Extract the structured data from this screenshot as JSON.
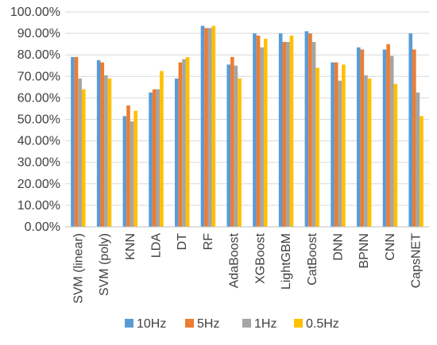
{
  "chart_data": {
    "type": "bar",
    "categories": [
      "SVM (linear)",
      "SVM (poly)",
      "KNN",
      "LDA",
      "DT",
      "RF",
      "AdaBoost",
      "XGBoost",
      "LightGBM",
      "CatBoost",
      "DNN",
      "BPNN",
      "CNN",
      "CapsNET"
    ],
    "series": [
      {
        "name": "10Hz",
        "color": "#5B9BD5",
        "values": [
          79.0,
          77.5,
          51.5,
          62.5,
          69.0,
          93.5,
          75.5,
          90.0,
          90.0,
          91.0,
          76.5,
          83.5,
          82.5,
          90.0
        ]
      },
      {
        "name": "5Hz",
        "color": "#ED7D31",
        "values": [
          79.0,
          76.5,
          56.5,
          64.0,
          76.5,
          92.5,
          79.0,
          89.0,
          86.0,
          90.0,
          76.5,
          82.5,
          85.0,
          82.5
        ]
      },
      {
        "name": "1Hz",
        "color": "#A5A5A5",
        "values": [
          69.0,
          70.5,
          49.0,
          64.0,
          78.0,
          92.5,
          75.0,
          83.5,
          86.0,
          86.0,
          68.0,
          70.5,
          79.5,
          62.5
        ]
      },
      {
        "name": "0.5Hz",
        "color": "#FFC000",
        "values": [
          64.0,
          69.0,
          54.0,
          72.5,
          79.0,
          93.5,
          69.0,
          87.5,
          89.0,
          74.0,
          75.5,
          69.0,
          66.5,
          51.5
        ]
      }
    ],
    "yticks": [
      "0.00%",
      "10.00%",
      "20.00%",
      "30.00%",
      "40.00%",
      "50.00%",
      "60.00%",
      "70.00%",
      "80.00%",
      "90.00%",
      "100.00%"
    ],
    "ylim": [
      0,
      100
    ],
    "grid": true,
    "legend_position": "bottom"
  }
}
